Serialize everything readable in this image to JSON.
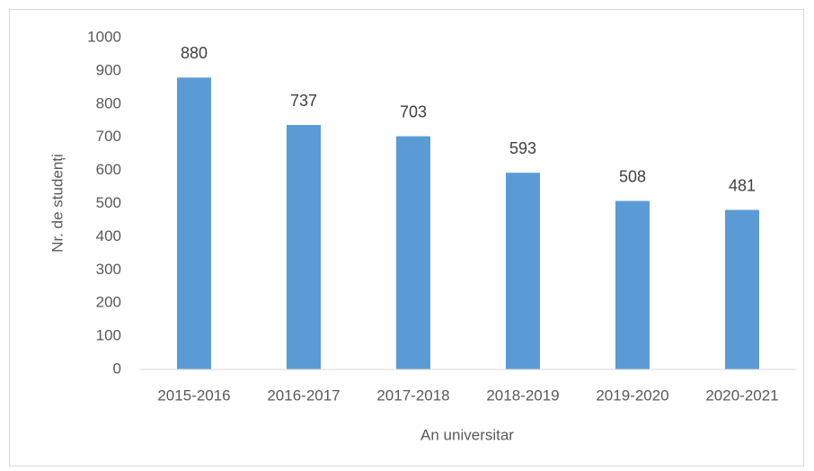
{
  "chart_data": {
    "type": "bar",
    "x_label": "An universitar",
    "y_label": "Nr. de studenți",
    "categories": [
      "2015-2016",
      "2016-2017",
      "2017-2018",
      "2018-2019",
      "2019-2020",
      "2020-2021"
    ],
    "values": [
      880,
      737,
      703,
      593,
      508,
      481
    ],
    "color": "#5b9bd5",
    "ylim": [
      0,
      1000
    ],
    "yticks": [
      0,
      100,
      200,
      300,
      400,
      500,
      600,
      700,
      800,
      900,
      1000
    ],
    "grid": false
  }
}
